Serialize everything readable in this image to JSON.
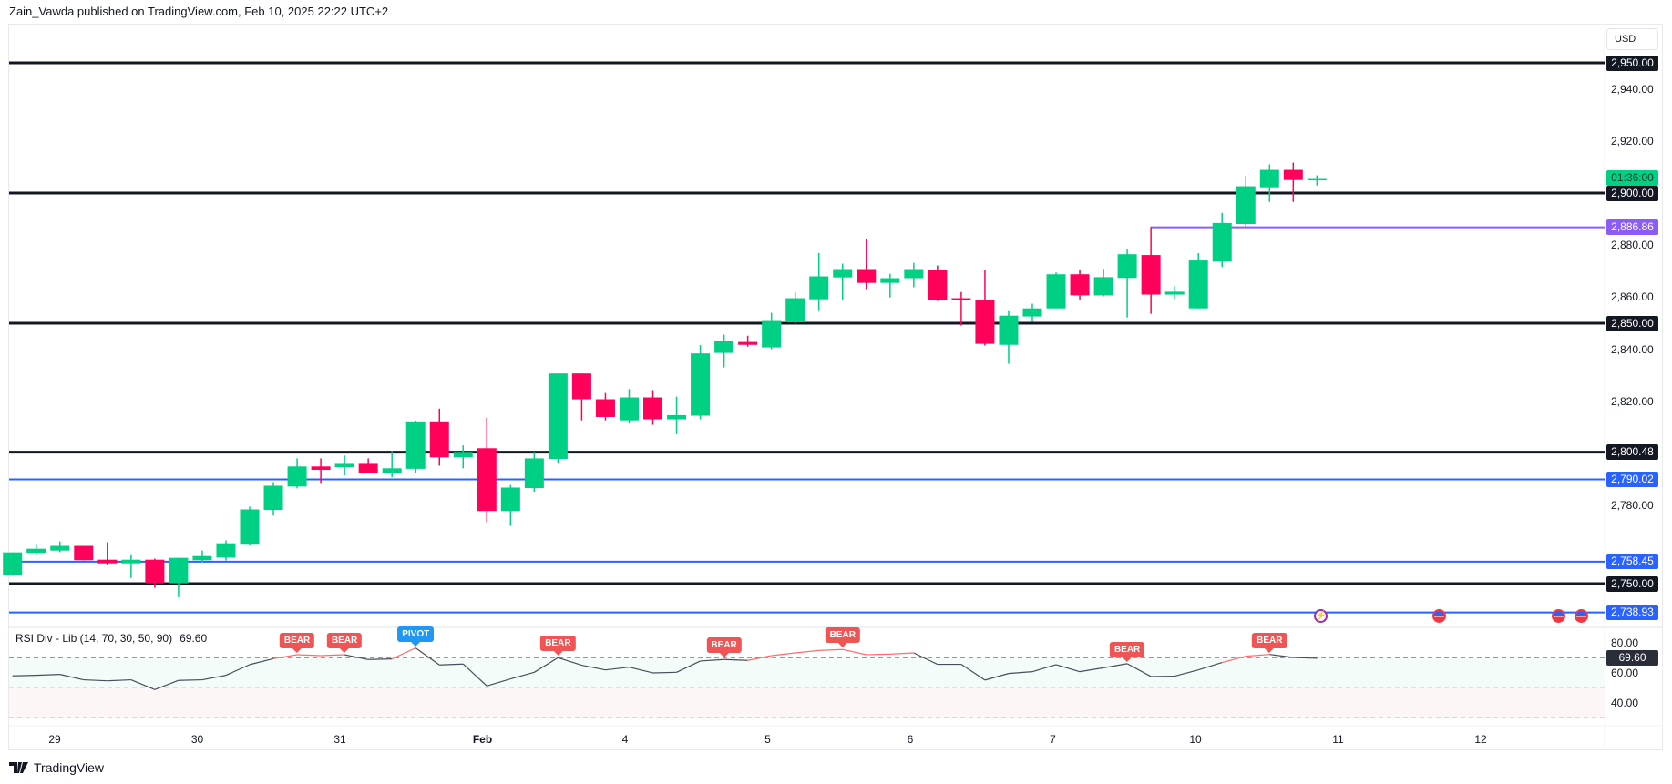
{
  "header": {
    "published": "Zain_Vawda published on TradingView.com, Feb 10, 2025 22:22 UTC+2"
  },
  "price_axis": {
    "currency": "USD",
    "ticks": [
      {
        "value": 2940,
        "label": "2,940.00"
      },
      {
        "value": 2920,
        "label": "2,920.00"
      },
      {
        "value": 2880,
        "label": "2,880.00"
      },
      {
        "value": 2860,
        "label": "2,860.00"
      },
      {
        "value": 2840,
        "label": "2,840.00"
      },
      {
        "value": 2820,
        "label": "2,820.00"
      },
      {
        "value": 2780,
        "label": "2,780.00"
      }
    ],
    "countdown": "01:36:00"
  },
  "rsi_axis": {
    "ticks": [
      {
        "value": 80,
        "label": "80.00"
      },
      {
        "value": 60,
        "label": "60.00"
      },
      {
        "value": 40,
        "label": "40.00"
      }
    ],
    "current": "69.60"
  },
  "legend": {
    "name": "RSI Div - Lib (14, 70, 30, 50, 90)",
    "value": "69.60"
  },
  "footer": {
    "logo_text": "TradingView"
  },
  "colors": {
    "up": "#00d084",
    "down": "#ff005a",
    "support": "#131722",
    "blue_level": "#2962ff",
    "purple_level": "#8b5cf6",
    "rsi_line": "#4a4e5a",
    "divergence": "#ff6b6b",
    "bear": "#f05454",
    "pivot": "#2196f3",
    "countdown": "#00d084"
  },
  "events": [
    {
      "type": "lightning-icon"
    },
    {
      "type": "us-flag-icon"
    },
    {
      "type": "us-flag-icon"
    },
    {
      "type": "us-flag-icon"
    }
  ],
  "chart_data": [
    {
      "type": "candlestick",
      "timeframe_labels": [
        "29",
        "30",
        "31",
        "Feb",
        "4",
        "5",
        "6",
        "7",
        "10",
        "11",
        "12"
      ],
      "ylim": [
        2730,
        2960
      ],
      "candles_ohlc": [
        [
          2753.4,
          2762.0,
          2753.0,
          2762.0
        ],
        [
          2761.8,
          2765.2,
          2761.2,
          2763.4
        ],
        [
          2762.7,
          2766.2,
          2762.1,
          2764.5
        ],
        [
          2764.5,
          2764.5,
          2759.0,
          2759.0
        ],
        [
          2759.2,
          2765.9,
          2757.1,
          2757.8
        ],
        [
          2757.8,
          2761.3,
          2752.2,
          2759.2
        ],
        [
          2759.2,
          2759.6,
          2748.4,
          2750.2
        ],
        [
          2750.2,
          2759.9,
          2744.8,
          2759.9
        ],
        [
          2759.0,
          2762.7,
          2758.2,
          2760.6
        ],
        [
          2760.0,
          2766.6,
          2758.9,
          2765.5
        ],
        [
          2765.3,
          2779.6,
          2764.8,
          2778.5
        ],
        [
          2778.3,
          2789.0,
          2776.2,
          2787.6
        ],
        [
          2787.3,
          2798.1,
          2786.6,
          2795.0
        ],
        [
          2795.0,
          2798.1,
          2788.7,
          2793.7
        ],
        [
          2794.7,
          2799.2,
          2791.6,
          2796.0
        ],
        [
          2796.0,
          2798.1,
          2792.3,
          2792.6
        ],
        [
          2792.6,
          2800.9,
          2790.9,
          2794.3
        ],
        [
          2794.1,
          2812.6,
          2792.3,
          2812.3
        ],
        [
          2812.3,
          2817.2,
          2795.3,
          2798.5
        ],
        [
          2798.5,
          2803.1,
          2794.3,
          2800.6
        ],
        [
          2802.0,
          2813.7,
          2773.6,
          2777.9
        ],
        [
          2777.9,
          2787.9,
          2772.2,
          2786.9
        ],
        [
          2786.7,
          2800.6,
          2785.3,
          2798.1
        ],
        [
          2797.9,
          2830.7,
          2796.5,
          2830.7
        ],
        [
          2830.7,
          2830.7,
          2812.7,
          2820.8
        ],
        [
          2820.8,
          2823.2,
          2812.7,
          2814.0
        ],
        [
          2812.7,
          2824.7,
          2811.7,
          2821.5
        ],
        [
          2821.5,
          2824.3,
          2811.0,
          2813.1
        ],
        [
          2813.1,
          2821.8,
          2807.4,
          2814.7
        ],
        [
          2814.5,
          2841.6,
          2813.1,
          2838.4
        ],
        [
          2838.6,
          2845.6,
          2833.0,
          2843.1
        ],
        [
          2842.8,
          2845.2,
          2841.0,
          2841.7
        ],
        [
          2840.7,
          2854.0,
          2840.0,
          2851.2
        ],
        [
          2850.8,
          2862.0,
          2849.8,
          2859.6
        ],
        [
          2859.2,
          2877.0,
          2855.0,
          2868.0
        ],
        [
          2867.6,
          2872.9,
          2858.9,
          2870.8
        ],
        [
          2870.8,
          2882.3,
          2863.1,
          2865.5
        ],
        [
          2865.5,
          2869.0,
          2859.9,
          2867.3
        ],
        [
          2867.3,
          2873.2,
          2863.8,
          2870.8
        ],
        [
          2870.4,
          2872.2,
          2858.5,
          2858.9
        ],
        [
          2859.6,
          2862.0,
          2849.1,
          2859.2
        ],
        [
          2858.9,
          2870.4,
          2841.4,
          2842.1
        ],
        [
          2841.7,
          2855.0,
          2834.4,
          2852.9
        ],
        [
          2852.6,
          2857.5,
          2850.5,
          2855.7
        ],
        [
          2855.7,
          2869.5,
          2855.7,
          2868.8
        ],
        [
          2868.8,
          2870.5,
          2858.9,
          2860.7
        ],
        [
          2860.7,
          2870.9,
          2860.3,
          2867.7
        ],
        [
          2867.4,
          2878.3,
          2852.2,
          2876.5
        ],
        [
          2876.2,
          2887.0,
          2853.6,
          2861.0
        ],
        [
          2861.0,
          2864.2,
          2859.3,
          2862.1
        ],
        [
          2855.7,
          2876.9,
          2855.7,
          2874.1
        ],
        [
          2873.7,
          2892.4,
          2871.6,
          2888.5
        ],
        [
          2888.1,
          2906.5,
          2886.7,
          2902.6
        ],
        [
          2902.2,
          2911.0,
          2896.6,
          2908.9
        ],
        [
          2908.9,
          2911.7,
          2896.6,
          2905.0
        ],
        [
          2905.3,
          2906.8,
          2902.9,
          2905.4
        ]
      ],
      "levels": [
        {
          "value": 2950.0,
          "label": "2,950.00",
          "style": "black"
        },
        {
          "value": 2900.0,
          "label": "2,900.00",
          "style": "black"
        },
        {
          "value": 2886.86,
          "label": "2,886.86",
          "style": "purple",
          "from_candle": 48
        },
        {
          "value": 2850.0,
          "label": "2,850.00",
          "style": "black"
        },
        {
          "value": 2800.48,
          "label": "2,800.48",
          "style": "black"
        },
        {
          "value": 2790.02,
          "label": "2,790.02",
          "style": "blue"
        },
        {
          "value": 2758.45,
          "label": "2,758.45",
          "style": "blue"
        },
        {
          "value": 2750.0,
          "label": "2,750.00",
          "style": "black"
        },
        {
          "value": 2738.93,
          "label": "2,738.93",
          "style": "blue"
        }
      ]
    },
    {
      "type": "line",
      "name": "RSI Div - Lib (14, 70, 30, 50, 90)",
      "ylim": [
        20,
        90
      ],
      "bands": {
        "overbought": 70,
        "mid": 50,
        "oversold": 30
      },
      "values": [
        57.9,
        58.3,
        58.9,
        55.3,
        54.6,
        55.3,
        48.8,
        54.9,
        55.3,
        58.3,
        65.4,
        69.4,
        72.0,
        71.4,
        72.0,
        68.8,
        69.2,
        76.5,
        65.2,
        65.8,
        51.2,
        55.9,
        60.3,
        70.0,
        65.0,
        61.9,
        63.7,
        59.9,
        60.3,
        67.8,
        68.8,
        68.2,
        71.4,
        73.2,
        74.8,
        75.5,
        72.0,
        72.4,
        73.2,
        65.6,
        65.6,
        55.1,
        59.5,
        60.7,
        65.4,
        60.7,
        63.3,
        66.0,
        57.5,
        57.7,
        61.9,
        66.8,
        71.0,
        72.2,
        70.2,
        69.6
      ],
      "divergence_segments": [
        [
          11,
          14
        ],
        [
          16,
          17
        ],
        [
          31,
          38
        ],
        [
          51,
          53
        ]
      ],
      "signals": [
        {
          "index": 12,
          "text": "BEAR"
        },
        {
          "index": 14,
          "text": "BEAR"
        },
        {
          "index": 17,
          "text": "PIVOT"
        },
        {
          "index": 23,
          "text": "BEAR"
        },
        {
          "index": 30,
          "text": "BEAR"
        },
        {
          "index": 35,
          "text": "BEAR"
        },
        {
          "index": 47,
          "text": "BEAR"
        },
        {
          "index": 53,
          "text": "BEAR"
        }
      ]
    }
  ]
}
